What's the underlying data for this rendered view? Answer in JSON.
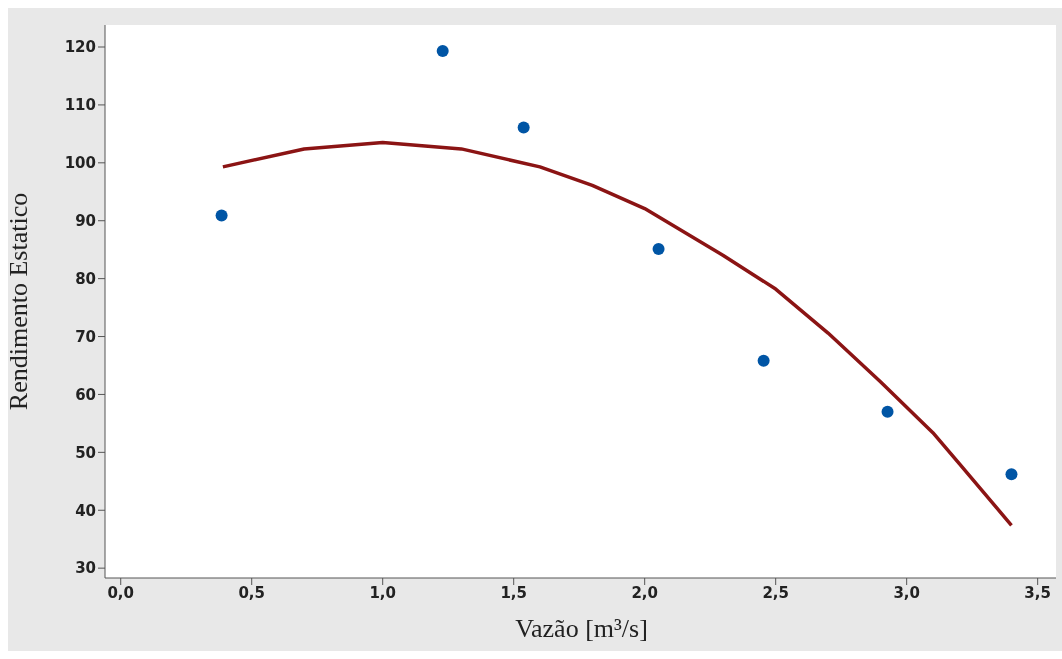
{
  "chart_data": {
    "type": "scatter",
    "xlabel": "Vazão [m³/s]",
    "ylabel": "Rendimento Estatico",
    "xlim": [
      -0.06,
      3.57
    ],
    "ylim": [
      28.3,
      123.8
    ],
    "xticks": [
      {
        "value": 0,
        "label": "0,0"
      },
      {
        "value": 0.5,
        "label": "0,5"
      },
      {
        "value": 1,
        "label": "1,0"
      },
      {
        "value": 1.5,
        "label": "1,5"
      },
      {
        "value": 2,
        "label": "2,0"
      },
      {
        "value": 2.5,
        "label": "2,5"
      },
      {
        "value": 3,
        "label": "3,0"
      },
      {
        "value": 3.5,
        "label": "3,5"
      }
    ],
    "yticks": [
      30,
      40,
      50,
      60,
      70,
      80,
      90,
      100,
      110,
      120
    ],
    "grid": false,
    "series": [
      {
        "color": "#0055a5",
        "marker": "circle",
        "x": [
          0.385,
          1.229,
          1.538,
          2.053,
          2.454,
          2.927,
          3.4
        ],
        "values": [
          90.9,
          119.3,
          106.1,
          85.1,
          65.8,
          57.0,
          46.2
        ]
      },
      {
        "type": "line",
        "color": "#8b1414",
        "line_style": "solid",
        "marker": "none",
        "x": [
          0.39,
          0.7,
          1.0,
          1.3,
          1.6,
          1.8,
          2.0,
          2.3,
          2.5,
          2.7,
          2.9,
          3.1,
          3.2,
          3.4
        ],
        "values": [
          99.3,
          102.4,
          103.5,
          102.4,
          99.3,
          96.1,
          92.1,
          84.0,
          78.2,
          70.6,
          62.2,
          53.4,
          48.1,
          37.4
        ]
      }
    ]
  }
}
